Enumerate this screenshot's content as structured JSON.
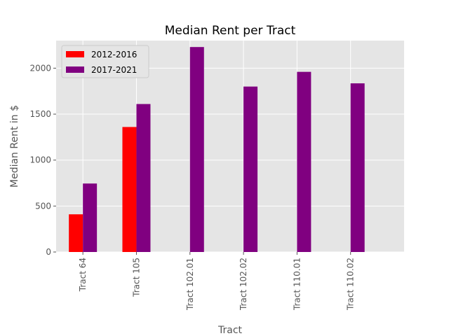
{
  "chart_data": {
    "type": "bar",
    "title": "Median Rent per Tract",
    "xlabel": "Tract",
    "ylabel": "Median Rent in $",
    "categories": [
      "Tract 64",
      "Tract 105",
      "Tract 102.01",
      "Tract 102.02",
      "Tract 110.01",
      "Tract 110.02"
    ],
    "series": [
      {
        "name": "2012-2016",
        "color": "#ff0000",
        "values": [
          410,
          1360,
          null,
          null,
          null,
          null
        ]
      },
      {
        "name": "2017-2021",
        "color": "#800080",
        "values": [
          745,
          1610,
          2230,
          1800,
          1960,
          1835
        ]
      }
    ],
    "ylim": [
      0,
      2300
    ],
    "yticks": [
      0,
      500,
      1000,
      1500,
      2000
    ],
    "grid": true,
    "legend_position": "top-left",
    "background_color": "#e5e5e5"
  }
}
